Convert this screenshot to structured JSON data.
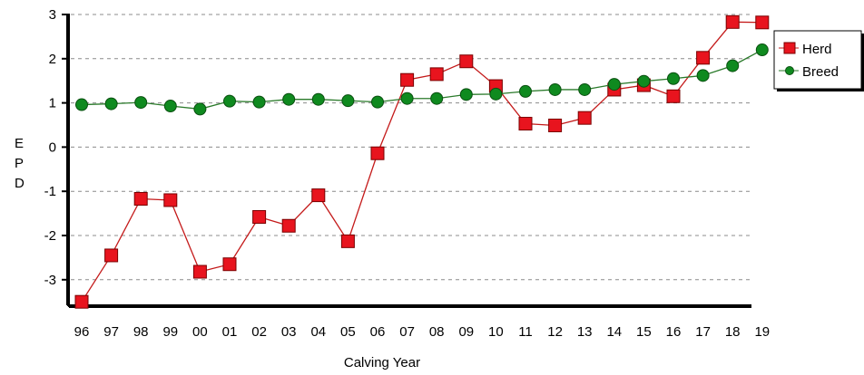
{
  "chart_data": {
    "type": "line",
    "xlabel": "Calving Year",
    "ylabel": "EPD",
    "ylabel_letters": [
      "E",
      "P",
      "D"
    ],
    "categories": [
      "96",
      "97",
      "98",
      "99",
      "00",
      "01",
      "02",
      "03",
      "04",
      "05",
      "06",
      "07",
      "08",
      "09",
      "10",
      "11",
      "12",
      "13",
      "14",
      "15",
      "16",
      "17",
      "18",
      "19"
    ],
    "ylim": [
      -3.5,
      3
    ],
    "yticks": [
      3,
      2,
      1,
      0,
      -1,
      -2,
      -3
    ],
    "grid": true,
    "legend_position": "top-right",
    "series": [
      {
        "name": "Herd",
        "marker": "square",
        "color": "#e8141e",
        "line_color": "#c41a1a",
        "values": [
          -3.5,
          -2.45,
          -1.17,
          -1.2,
          -2.82,
          -2.65,
          -1.58,
          -1.78,
          -1.09,
          -2.13,
          -0.14,
          1.52,
          1.65,
          1.94,
          1.38,
          0.53,
          0.49,
          0.66,
          1.3,
          1.4,
          1.15,
          2.02,
          2.83,
          2.82
        ]
      },
      {
        "name": "Breed",
        "marker": "circle",
        "color": "#0f8a1f",
        "line_color": "#2a7a2a",
        "values": [
          0.96,
          0.98,
          1.01,
          0.93,
          0.86,
          1.04,
          1.02,
          1.08,
          1.08,
          1.05,
          1.02,
          1.1,
          1.1,
          1.19,
          1.2,
          1.26,
          1.3,
          1.3,
          1.42,
          1.49,
          1.55,
          1.62,
          1.84,
          2.2
        ]
      }
    ]
  }
}
